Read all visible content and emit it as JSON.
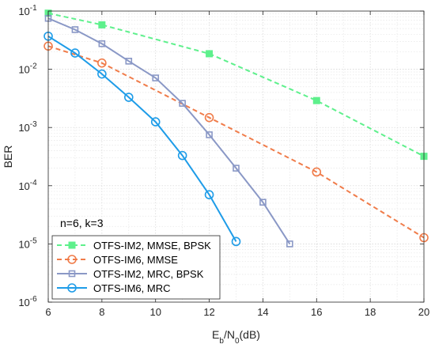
{
  "chart_data": {
    "type": "line",
    "title": "",
    "xlabel": {
      "main": "E",
      "sub1": "b",
      "mid": "/N",
      "sub2": "0",
      "tail": "(dB)"
    },
    "ylabel": "BER",
    "xlim": [
      6,
      20
    ],
    "ylim": [
      1e-06,
      0.1
    ],
    "yscale": "log",
    "grid": true,
    "legend_position": "bottom-left",
    "x_ticks": [
      6,
      8,
      10,
      12,
      14,
      16,
      18,
      20
    ],
    "y_ticks": [
      {
        "value": 1e-06,
        "base": "10",
        "exp": "-6"
      },
      {
        "value": 1e-05,
        "base": "10",
        "exp": "-5"
      },
      {
        "value": 0.0001,
        "base": "10",
        "exp": "-4"
      },
      {
        "value": 0.001,
        "base": "10",
        "exp": "-3"
      },
      {
        "value": 0.01,
        "base": "10",
        "exp": "-2"
      },
      {
        "value": 0.1,
        "base": "10",
        "exp": "-1"
      }
    ],
    "annotation": "n=6, k=3",
    "series": [
      {
        "name": "OTFS-IM2, MMSE, BPSK",
        "color": "#5ef08c",
        "line_style": "dashed",
        "marker": "square-filled",
        "x": [
          6,
          8,
          12,
          16,
          20
        ],
        "y": [
          0.092,
          0.058,
          0.0185,
          0.0029,
          0.00032
        ]
      },
      {
        "name": "OTFS-IM6, MMSE",
        "color": "#f07c4a",
        "line_style": "dashed",
        "marker": "circle",
        "x": [
          6,
          8,
          12,
          16,
          20
        ],
        "y": [
          0.025,
          0.0128,
          0.00148,
          0.000172,
          1.28e-05
        ]
      },
      {
        "name": "OTFS-IM2, MRC, BPSK",
        "color": "#8a98c6",
        "line_style": "solid",
        "marker": "square",
        "x": [
          6,
          7,
          8,
          9,
          10,
          11,
          12,
          13,
          14,
          15
        ],
        "y": [
          0.075,
          0.048,
          0.0275,
          0.0138,
          0.0071,
          0.0026,
          0.00075,
          0.0002,
          5.2e-05,
          1e-05
        ]
      },
      {
        "name": "OTFS-IM6, MRC",
        "color": "#1e9ce8",
        "line_style": "solid",
        "marker": "circle",
        "x": [
          6,
          7,
          8,
          9,
          10,
          11,
          12,
          13
        ],
        "y": [
          0.037,
          0.019,
          0.0083,
          0.0033,
          0.00125,
          0.00033,
          7e-05,
          1.1e-05
        ]
      }
    ]
  }
}
